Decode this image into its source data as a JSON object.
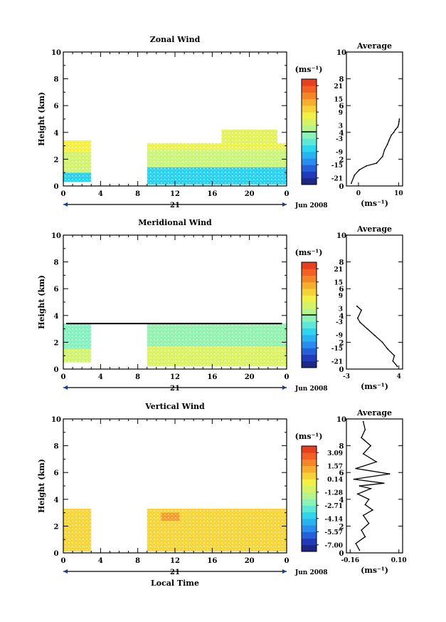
{
  "chart_data": [
    {
      "type": "heatmap",
      "title": "Zonal Wind",
      "ylabel": "Height (km)",
      "xlabel": "",
      "xlim": [
        0,
        24
      ],
      "ylim": [
        0,
        10
      ],
      "xticks": [
        "0",
        "4",
        "8",
        "12",
        "16",
        "20",
        "0"
      ],
      "yticks": [
        "0",
        "2",
        "4",
        "6",
        "8",
        "10"
      ],
      "date_label": "21",
      "month_label": "Jun 2008",
      "colorbar": {
        "unit": "(ms⁻¹)",
        "ticks": [
          "21",
          "15",
          "9",
          "3",
          "-3",
          "-9",
          "-15",
          "-21"
        ],
        "range": [
          -24,
          24
        ],
        "zero_line": true
      },
      "regions": [
        {
          "x0": 0,
          "x1": 3,
          "y0": 0.3,
          "y1": 1.0,
          "value": -8
        },
        {
          "x0": 0,
          "x1": 3,
          "y0": 1.0,
          "y1": 2.5,
          "value": 4
        },
        {
          "x0": 0,
          "x1": 3,
          "y0": 2.5,
          "y1": 3.4,
          "value": 8
        },
        {
          "x0": 9,
          "x1": 24,
          "y0": 0.1,
          "y1": 1.4,
          "value": -8
        },
        {
          "x0": 9,
          "x1": 24,
          "y0": 1.4,
          "y1": 2.7,
          "value": 3
        },
        {
          "x0": 9,
          "x1": 24,
          "y0": 2.7,
          "y1": 3.2,
          "value": 7
        },
        {
          "x0": 17,
          "x1": 23,
          "y0": 3.2,
          "y1": 4.2,
          "value": 6
        }
      ],
      "average": {
        "title": "Average",
        "xlabel": "(ms⁻¹)",
        "xlim": [
          -3,
          11
        ],
        "ylim": [
          0,
          10
        ],
        "xticks": [
          {
            "v": 0,
            "label": "0"
          },
          {
            "v": 10,
            "label": "10"
          }
        ],
        "yticks": [
          "0",
          "2",
          "4",
          "6",
          "8",
          "10"
        ],
        "x": [
          -1.8,
          -1.0,
          0.2,
          2.0,
          4.5,
          6.0,
          6.5,
          7.2,
          7.6,
          8.2,
          8.8,
          9.2,
          9.8,
          10.0,
          10.1,
          10.2
        ],
        "y": [
          0.2,
          0.8,
          1.2,
          1.5,
          1.7,
          2.2,
          2.7,
          3.1,
          3.4,
          3.8,
          4.0,
          4.2,
          4.4,
          4.6,
          4.8,
          5.0
        ]
      }
    },
    {
      "type": "heatmap",
      "title": "Meridional Wind",
      "ylabel": "Height (km)",
      "xlabel": "",
      "xlim": [
        0,
        24
      ],
      "ylim": [
        0,
        10
      ],
      "xticks": [
        "0",
        "4",
        "8",
        "12",
        "16",
        "20",
        "0"
      ],
      "yticks": [
        "0",
        "2",
        "4",
        "6",
        "8",
        "10"
      ],
      "date_label": "21",
      "month_label": "Jun 2008",
      "colorbar": {
        "unit": "(ms⁻¹)",
        "ticks": [
          "21",
          "15",
          "9",
          "3",
          "-3",
          "-9",
          "-15",
          "-21"
        ],
        "range": [
          -24,
          24
        ],
        "zero_line": true
      },
      "horizontal_line_y": 3.4,
      "regions": [
        {
          "x0": 0,
          "x1": 3,
          "y0": 0.5,
          "y1": 1.5,
          "value": 4
        },
        {
          "x0": 0,
          "x1": 3,
          "y0": 1.5,
          "y1": 3.4,
          "value": -2
        },
        {
          "x0": 9,
          "x1": 24,
          "y0": 0.2,
          "y1": 1.7,
          "value": 5
        },
        {
          "x0": 9,
          "x1": 24,
          "y0": 1.7,
          "y1": 3.4,
          "value": -1
        }
      ],
      "average": {
        "title": "Average",
        "xlabel": "(ms⁻¹)",
        "xlim": [
          -3,
          4.5
        ],
        "ylim": [
          0,
          10
        ],
        "xticks": [
          {
            "v": -3,
            "label": "-3"
          },
          {
            "v": 4,
            "label": "4"
          }
        ],
        "yticks": [
          "0",
          "2",
          "4",
          "6",
          "8",
          "10"
        ],
        "x": [
          3.8,
          3.2,
          3.4,
          2.5,
          1.8,
          0.8,
          -0.2,
          -1.2,
          -1.5,
          -1.0,
          -1.6
        ],
        "y": [
          0.2,
          0.6,
          1.0,
          1.5,
          2.0,
          2.5,
          3.0,
          3.5,
          3.8,
          4.4,
          4.7
        ]
      }
    },
    {
      "type": "heatmap",
      "title": "Vertical Wind",
      "ylabel": "Height (km)",
      "xlabel": "Local Time",
      "xlim": [
        0,
        24
      ],
      "ylim": [
        0,
        10
      ],
      "xticks": [
        "0",
        "4",
        "8",
        "12",
        "16",
        "20",
        "0"
      ],
      "yticks": [
        "0",
        "2",
        "4",
        "6",
        "8",
        "10"
      ],
      "date_label": "21",
      "month_label": "Jun 2008",
      "colorbar": {
        "unit": "(ms⁻¹)",
        "ticks": [
          "3.09",
          "1.57",
          "0.14",
          "-1.28",
          "-2.71",
          "-4.14",
          "-5.57",
          "-7.00"
        ],
        "range": [
          -7.7,
          3.8
        ],
        "zero_line": false
      },
      "regions": [
        {
          "x0": 0,
          "x1": 3,
          "y0": 0.1,
          "y1": 3.3,
          "value": 0.5
        },
        {
          "x0": 9,
          "x1": 24,
          "y0": 0.1,
          "y1": 3.3,
          "value": 0.5
        },
        {
          "x0": 10.5,
          "x1": 12.5,
          "y0": 2.4,
          "y1": 3.0,
          "value": 1.6
        }
      ],
      "average": {
        "title": "Average",
        "xlabel": "(ms⁻¹)",
        "xlim": [
          -0.18,
          0.12
        ],
        "ylim": [
          0,
          10
        ],
        "xticks": [
          {
            "v": -0.16,
            "label": "-0.16"
          },
          {
            "v": 0.1,
            "label": "0.10"
          }
        ],
        "yticks": [
          "0",
          "2",
          "4",
          "6",
          "8",
          "10"
        ],
        "x": [
          -0.11,
          -0.13,
          -0.08,
          -0.1,
          -0.06,
          -0.09,
          -0.04,
          -0.08,
          -0.06,
          -0.12,
          -0.05,
          -0.11,
          0.02,
          -0.14,
          0.05,
          -0.13,
          -0.02,
          -0.09,
          -0.05,
          -0.1,
          -0.08,
          -0.09
        ],
        "y": [
          0.2,
          0.7,
          1.2,
          1.7,
          2.2,
          2.8,
          3.2,
          3.6,
          4.0,
          4.4,
          4.8,
          5.0,
          5.2,
          5.5,
          5.9,
          6.3,
          6.8,
          7.4,
          8.0,
          8.6,
          9.2,
          9.8
        ]
      }
    }
  ]
}
